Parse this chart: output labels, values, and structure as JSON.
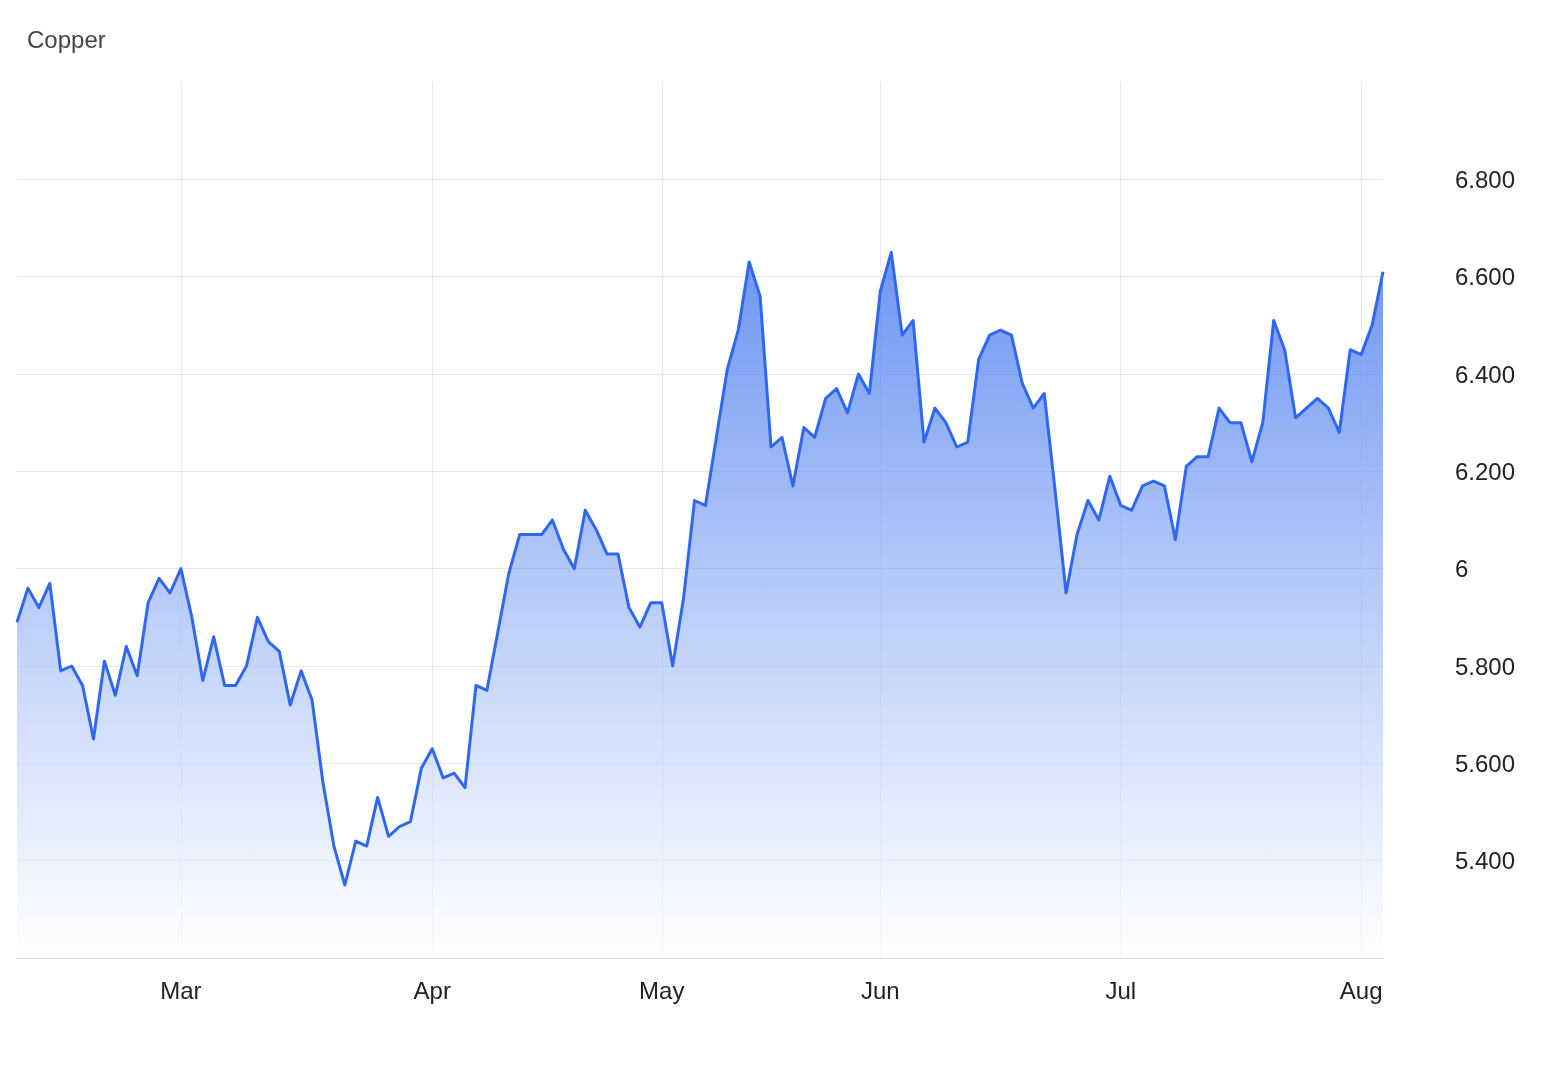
{
  "chart_data": {
    "type": "area",
    "title": "Copper",
    "categories": [
      null,
      null,
      null,
      null,
      null,
      null,
      null,
      null,
      null,
      null,
      null,
      null,
      null,
      null,
      null,
      "Mar",
      null,
      null,
      null,
      null,
      null,
      null,
      null,
      null,
      null,
      null,
      null,
      null,
      null,
      null,
      null,
      null,
      null,
      null,
      null,
      null,
      null,
      null,
      "Apr",
      null,
      null,
      null,
      null,
      null,
      null,
      null,
      null,
      null,
      null,
      null,
      null,
      null,
      null,
      null,
      null,
      null,
      null,
      null,
      null,
      "May",
      null,
      null,
      null,
      null,
      null,
      null,
      null,
      null,
      null,
      null,
      null,
      null,
      null,
      null,
      null,
      null,
      null,
      null,
      null,
      "Jun",
      null,
      null,
      null,
      null,
      null,
      null,
      null,
      null,
      null,
      null,
      null,
      null,
      null,
      null,
      null,
      null,
      null,
      null,
      null,
      null,
      null,
      "Jul",
      null,
      null,
      null,
      null,
      null,
      null,
      null,
      null,
      null,
      null,
      null,
      null,
      null,
      null,
      null,
      null,
      null,
      null,
      null,
      null,
      null,
      "Aug",
      null,
      null
    ],
    "series": [
      {
        "color": "#2f68ee",
        "values": [
          5.89,
          5.96,
          5.92,
          5.97,
          5.79,
          5.8,
          5.76,
          5.65,
          5.81,
          5.74,
          5.84,
          5.78,
          5.93,
          5.98,
          5.95,
          6.0,
          5.9,
          5.77,
          5.86,
          5.76,
          5.76,
          5.8,
          5.9,
          5.85,
          5.83,
          5.72,
          5.79,
          5.73,
          5.56,
          5.43,
          5.35,
          5.44,
          5.43,
          5.53,
          5.45,
          5.47,
          5.48,
          5.59,
          5.63,
          5.57,
          5.58,
          5.55,
          5.76,
          5.75,
          5.87,
          5.99,
          6.07,
          6.07,
          6.07,
          6.1,
          6.04,
          6.0,
          6.12,
          6.08,
          6.03,
          6.03,
          5.92,
          5.88,
          5.93,
          5.93,
          5.8,
          5.94,
          6.14,
          6.13,
          6.27,
          6.41,
          6.49,
          6.63,
          6.56,
          6.25,
          6.27,
          6.17,
          6.29,
          6.27,
          6.35,
          6.37,
          6.32,
          6.4,
          6.36,
          6.57,
          6.65,
          6.48,
          6.51,
          6.26,
          6.33,
          6.3,
          6.25,
          6.26,
          6.43,
          6.48,
          6.49,
          6.48,
          6.38,
          6.33,
          6.36,
          6.16,
          5.95,
          6.07,
          6.14,
          6.1,
          6.19,
          6.13,
          6.12,
          6.17,
          6.18,
          6.17,
          6.06,
          6.21,
          6.23,
          6.23,
          6.33,
          6.3,
          6.3,
          6.22,
          6.3,
          6.51,
          6.45,
          6.31,
          6.33,
          6.35,
          6.33,
          6.28,
          6.45,
          6.44,
          6.5,
          6.61
        ]
      }
    ],
    "ylim": [
      5.2,
      7.0
    ],
    "yticks": [
      {
        "value": 5.4,
        "label": "5.400"
      },
      {
        "value": 5.6,
        "label": "5.600"
      },
      {
        "value": 5.8,
        "label": "5.800"
      },
      6,
      {
        "value": 6.2,
        "label": "6.200"
      },
      {
        "value": 6.4,
        "label": "6.400"
      },
      {
        "value": 6.6,
        "label": "6.600"
      },
      {
        "value": 6.8,
        "label": "6.800"
      }
    ],
    "grid": true
  }
}
